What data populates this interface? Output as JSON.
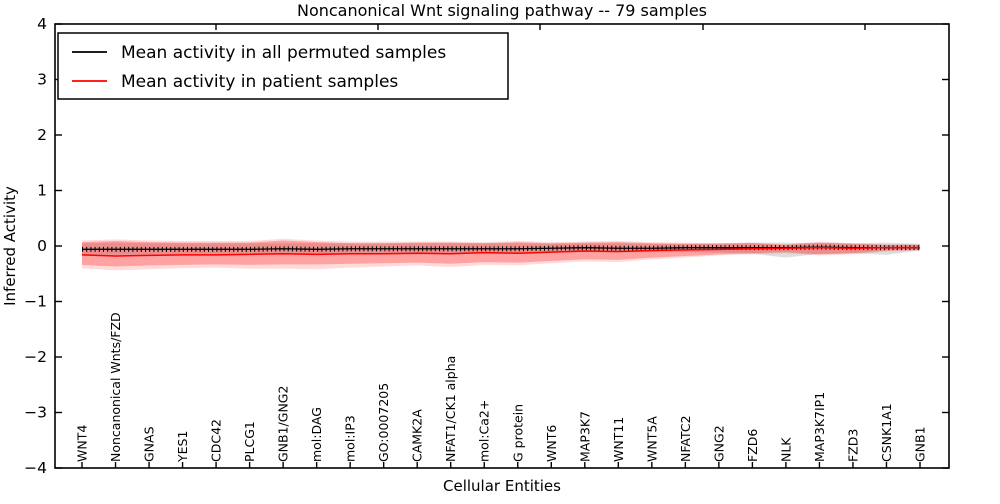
{
  "figure": {
    "background": "#ffffff",
    "frame_color": "#000000"
  },
  "chart_data": {
    "type": "line",
    "title": "Noncanonical Wnt signaling pathway -- 79 samples",
    "xlabel": "Cellular Entities",
    "ylabel": "Inferred Activity",
    "ylim": [
      -4,
      4
    ],
    "yticks": [
      4,
      3,
      2,
      1,
      0,
      -1,
      -2,
      -3,
      -4
    ],
    "ytick_labels": [
      "4",
      "3",
      "2",
      "1",
      "0",
      "−1",
      "−2",
      "−3",
      "−4"
    ],
    "grid": false,
    "legend_position": "upper left",
    "categories": [
      "WNT4",
      "Noncanonical Wnts/FZD",
      "GNAS",
      "YES1",
      "CDC42",
      "PLCG1",
      "GNB1/GNG2",
      "mol:DAG",
      "mol:IP3",
      "GO:0007205",
      "CAMK2A",
      "NFAT1/CK1 alpha",
      "mol:Ca2+",
      "G protein",
      "WNT6",
      "MAP3K7",
      "WNT11",
      "WNT5A",
      "NFATC2",
      "GNG2",
      "FZD6",
      "NLK",
      "MAP3K7IP1",
      "FZD3",
      "CSNK1A1",
      "GNB1"
    ],
    "series": [
      {
        "name": "Mean activity in all permuted samples",
        "color": "#000000",
        "marker": "tick",
        "values": [
          -0.06,
          -0.06,
          -0.06,
          -0.06,
          -0.06,
          -0.06,
          -0.05,
          -0.06,
          -0.05,
          -0.05,
          -0.05,
          -0.05,
          -0.05,
          -0.05,
          -0.04,
          -0.03,
          -0.04,
          -0.04,
          -0.03,
          -0.03,
          -0.03,
          -0.03,
          -0.02,
          -0.03,
          -0.03,
          -0.03
        ]
      },
      {
        "name": "Mean activity in patient samples",
        "color": "#ff0000",
        "marker": "none",
        "values": [
          -0.16,
          -0.18,
          -0.17,
          -0.16,
          -0.16,
          -0.15,
          -0.14,
          -0.15,
          -0.14,
          -0.14,
          -0.13,
          -0.14,
          -0.12,
          -0.13,
          -0.11,
          -0.09,
          -0.1,
          -0.08,
          -0.07,
          -0.06,
          -0.05,
          -0.04,
          -0.03,
          -0.04,
          -0.03,
          -0.03
        ]
      }
    ],
    "bands": [
      {
        "name": "permuted-samples-std-band",
        "color": "#000000",
        "opacity": 0.13,
        "upper": [
          0.05,
          0.06,
          0.05,
          0.05,
          0.05,
          0.05,
          0.05,
          0.05,
          0.05,
          0.05,
          0.05,
          0.05,
          0.05,
          0.05,
          0.04,
          0.05,
          0.05,
          0.04,
          0.04,
          0.05,
          0.06,
          0.06,
          0.05,
          0.05,
          0.06,
          0.04
        ],
        "lower": [
          -0.15,
          -0.16,
          -0.15,
          -0.15,
          -0.15,
          -0.15,
          -0.14,
          -0.15,
          -0.14,
          -0.14,
          -0.13,
          -0.14,
          -0.13,
          -0.13,
          -0.12,
          -0.11,
          -0.12,
          -0.11,
          -0.11,
          -0.12,
          -0.14,
          -0.21,
          -0.14,
          -0.13,
          -0.16,
          -0.08
        ]
      },
      {
        "name": "patient-samples-std-outer-band",
        "color": "#ff0000",
        "opacity": 0.14,
        "upper": [
          0.1,
          0.12,
          0.1,
          0.09,
          0.09,
          0.09,
          0.13,
          0.1,
          0.08,
          0.08,
          0.08,
          0.08,
          0.07,
          0.09,
          0.07,
          0.08,
          0.09,
          0.07,
          0.06,
          0.05,
          0.06,
          0.03,
          0.08,
          0.05,
          0.03,
          0.03
        ],
        "lower": [
          -0.4,
          -0.44,
          -0.42,
          -0.4,
          -0.39,
          -0.41,
          -0.41,
          -0.42,
          -0.39,
          -0.37,
          -0.35,
          -0.38,
          -0.34,
          -0.35,
          -0.31,
          -0.28,
          -0.29,
          -0.24,
          -0.21,
          -0.17,
          -0.15,
          -0.13,
          -0.17,
          -0.15,
          -0.1,
          -0.08
        ]
      },
      {
        "name": "patient-samples-std-inner-band",
        "color": "#ff0000",
        "opacity": 0.26,
        "upper": [
          0.07,
          0.09,
          0.07,
          0.06,
          0.06,
          0.06,
          0.1,
          0.07,
          0.05,
          0.05,
          0.06,
          0.06,
          0.05,
          0.07,
          0.05,
          0.06,
          0.07,
          0.05,
          0.04,
          0.04,
          0.05,
          0.02,
          0.06,
          0.04,
          0.02,
          0.02
        ],
        "lower": [
          -0.34,
          -0.37,
          -0.35,
          -0.34,
          -0.33,
          -0.34,
          -0.33,
          -0.33,
          -0.32,
          -0.31,
          -0.3,
          -0.32,
          -0.29,
          -0.3,
          -0.27,
          -0.24,
          -0.25,
          -0.21,
          -0.18,
          -0.15,
          -0.13,
          -0.11,
          -0.15,
          -0.13,
          -0.08,
          -0.07
        ]
      }
    ]
  }
}
